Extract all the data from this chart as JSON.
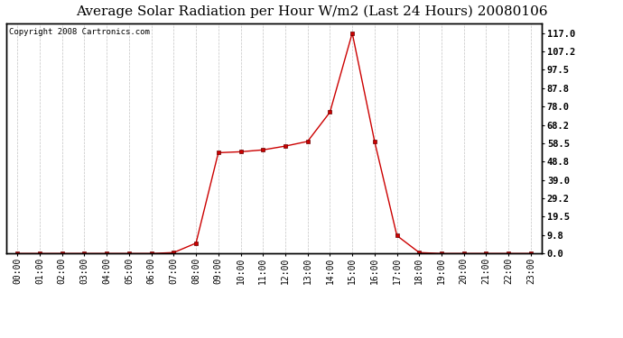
{
  "title": "Average Solar Radiation per Hour W/m2 (Last 24 Hours) 20080106",
  "copyright": "Copyright 2008 Cartronics.com",
  "hours": [
    0,
    1,
    2,
    3,
    4,
    5,
    6,
    7,
    8,
    9,
    10,
    11,
    12,
    13,
    14,
    15,
    16,
    17,
    18,
    19,
    20,
    21,
    22,
    23
  ],
  "hour_labels": [
    "00:00",
    "01:00",
    "02:00",
    "03:00",
    "04:00",
    "05:00",
    "06:00",
    "07:00",
    "08:00",
    "09:00",
    "10:00",
    "11:00",
    "12:00",
    "13:00",
    "14:00",
    "15:00",
    "16:00",
    "17:00",
    "18:00",
    "19:00",
    "20:00",
    "21:00",
    "22:00",
    "23:00"
  ],
  "values": [
    0.0,
    0.0,
    0.0,
    0.0,
    0.0,
    0.0,
    0.0,
    0.5,
    5.5,
    53.5,
    54.0,
    55.0,
    57.0,
    59.5,
    75.0,
    117.0,
    59.5,
    9.5,
    0.5,
    0.0,
    0.0,
    0.0,
    0.0,
    0.0
  ],
  "line_color": "#cc0000",
  "marker": "s",
  "marker_size": 2.5,
  "yticks": [
    0.0,
    9.8,
    19.5,
    29.2,
    39.0,
    48.8,
    58.5,
    68.2,
    78.0,
    87.8,
    97.5,
    107.2,
    117.0
  ],
  "ylim": [
    0,
    122
  ],
  "bg_color": "#ffffff",
  "plot_bg": "#ffffff",
  "grid_color": "#aaaaaa",
  "title_fontsize": 11,
  "copyright_fontsize": 6.5,
  "tick_fontsize": 7,
  "ytick_fontsize": 7.5
}
